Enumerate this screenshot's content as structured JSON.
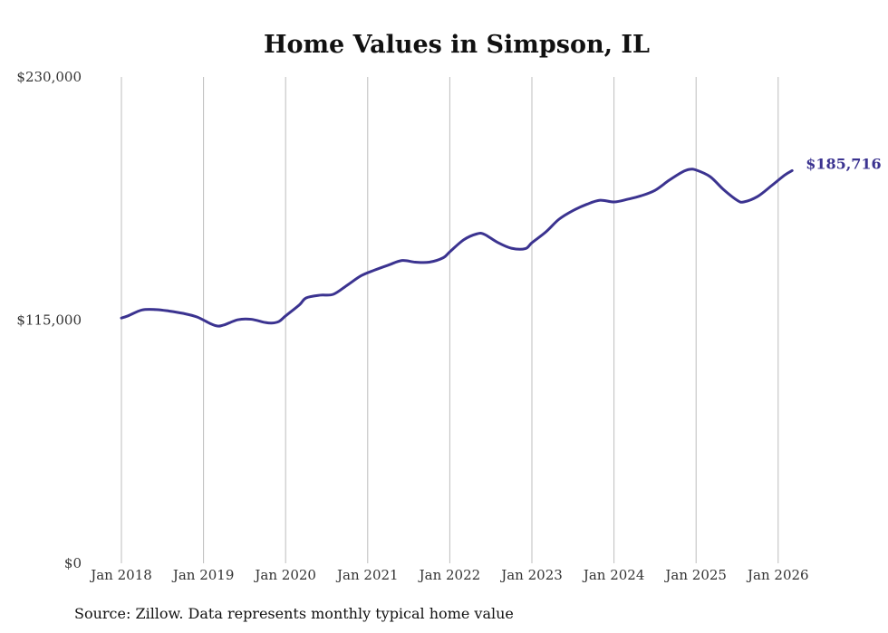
{
  "chart_data": {
    "type": "line",
    "title": "Home Values in Simpson, IL",
    "xlabel": "",
    "ylabel": "",
    "ylim": [
      0,
      230000
    ],
    "xlim": [
      2018,
      2026.17
    ],
    "y_ticks": [
      "$0",
      "$115,000",
      "$230,000"
    ],
    "y_tick_values": [
      0,
      115000,
      230000
    ],
    "x_ticks": [
      "Jan 2018",
      "Jan 2019",
      "Jan 2020",
      "Jan 2021",
      "Jan 2022",
      "Jan 2023",
      "Jan 2024",
      "Jan 2025",
      "Jan 2026"
    ],
    "x_tick_values": [
      2018,
      2019,
      2020,
      2021,
      2022,
      2023,
      2024,
      2025,
      2026
    ],
    "grid": "vertical",
    "line_color": "#3b3390",
    "end_label": "$185,716",
    "series": [
      {
        "name": "Typical home value",
        "x": [
          2018.0,
          2018.08,
          2018.25,
          2018.42,
          2018.58,
          2018.75,
          2018.92,
          2019.08,
          2019.17,
          2019.25,
          2019.42,
          2019.58,
          2019.75,
          2019.83,
          2019.92,
          2020.0,
          2020.17,
          2020.25,
          2020.42,
          2020.58,
          2020.75,
          2020.92,
          2021.08,
          2021.25,
          2021.42,
          2021.58,
          2021.75,
          2021.92,
          2022.0,
          2022.17,
          2022.33,
          2022.42,
          2022.58,
          2022.75,
          2022.92,
          2023.0,
          2023.17,
          2023.33,
          2023.5,
          2023.67,
          2023.83,
          2024.0,
          2024.17,
          2024.33,
          2024.5,
          2024.67,
          2024.83,
          2024.92,
          2025.0,
          2025.17,
          2025.33,
          2025.5,
          2025.58,
          2025.75,
          2025.92,
          2026.08,
          2026.17
        ],
        "y": [
          116000,
          117000,
          119800,
          120000,
          119300,
          118200,
          116500,
          113400,
          112200,
          112700,
          115200,
          115400,
          113900,
          113600,
          114400,
          117000,
          122300,
          125500,
          126800,
          127200,
          131500,
          136000,
          138600,
          141000,
          143200,
          142400,
          142400,
          144500,
          147300,
          153000,
          155800,
          155600,
          151800,
          149000,
          148800,
          151600,
          156700,
          162700,
          166800,
          169800,
          171700,
          170900,
          172200,
          173800,
          176400,
          181100,
          185000,
          186300,
          186000,
          182900,
          176900,
          171700,
          170900,
          173500,
          178600,
          183600,
          185716
        ]
      }
    ]
  },
  "source": "Source: Zillow. Data represents monthly typical home value"
}
